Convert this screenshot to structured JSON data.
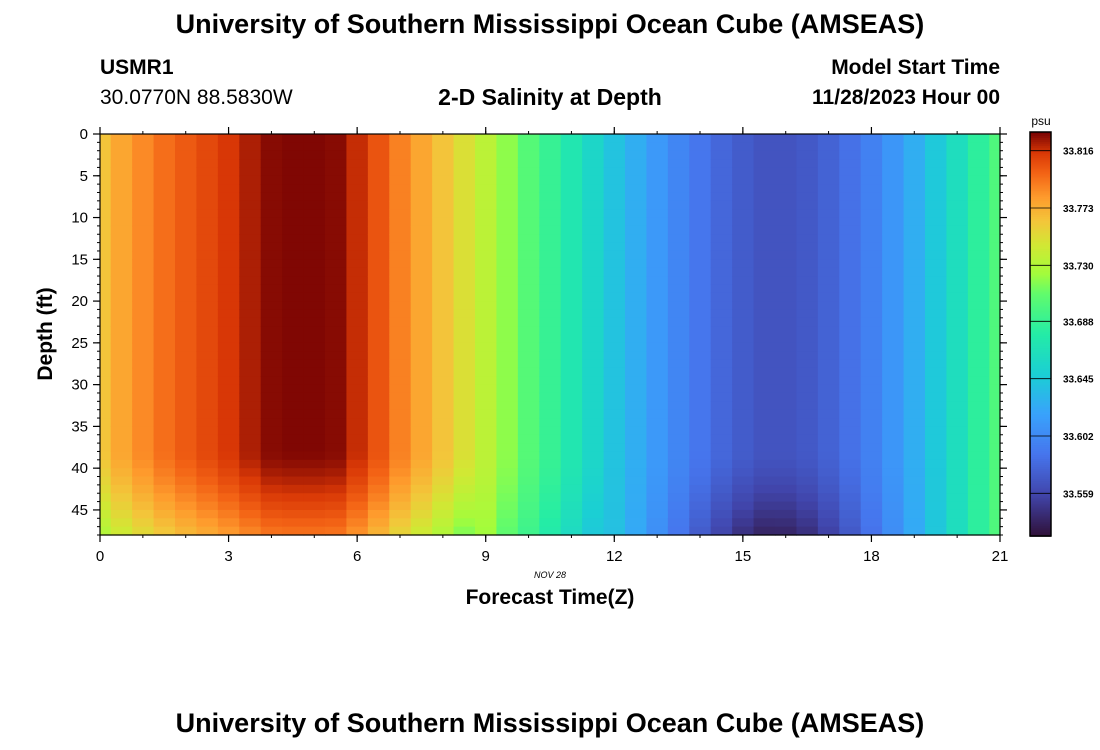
{
  "header": {
    "title": "University of Southern Mississippi Ocean Cube (AMSEAS)",
    "station": "USMR1",
    "coords": "30.0770N  88.5830W",
    "subtitle": "2-D Salinity at Depth",
    "model_start_label": "Model Start Time",
    "model_start_value": "11/28/2023 Hour 00",
    "bottom_title": "University of Southern Mississippi Ocean Cube (AMSEAS)"
  },
  "chart_data": {
    "type": "heatmap",
    "title": "2-D Salinity at Depth",
    "xlabel": "Forecast Time(Z)",
    "ylabel": "Depth (ft)",
    "date_label": "NOV 28",
    "xlim": [
      0,
      21
    ],
    "ylim": [
      0,
      48
    ],
    "x_ticks": [
      "0",
      "3",
      "6",
      "9",
      "12",
      "15",
      "18",
      "21"
    ],
    "y_ticks": [
      "0",
      "5",
      "10",
      "15",
      "20",
      "25",
      "30",
      "35",
      "40",
      "45"
    ],
    "colorbar": {
      "unit": "psu",
      "ticks": [
        "33.816",
        "33.773",
        "33.730",
        "33.688",
        "33.645",
        "33.602",
        "33.559"
      ],
      "min": 33.527,
      "max": 33.83
    },
    "time_steps": [
      0,
      0.5,
      1,
      1.5,
      2,
      2.5,
      3,
      3.5,
      4,
      4.5,
      5,
      5.5,
      6,
      6.5,
      7,
      7.5,
      8,
      8.5,
      9,
      9.5,
      10,
      10.5,
      11,
      11.5,
      12,
      12.5,
      13,
      13.5,
      14,
      14.5,
      15,
      15.5,
      16,
      16.5,
      17,
      17.5,
      18,
      18.5,
      19,
      19.5,
      20,
      20.5,
      21
    ],
    "surface_salinity_psu": [
      33.764,
      33.777,
      33.787,
      33.796,
      33.803,
      33.809,
      33.815,
      33.822,
      33.828,
      33.829,
      33.829,
      33.828,
      33.818,
      33.805,
      33.79,
      33.777,
      33.764,
      33.75,
      33.735,
      33.719,
      33.703,
      33.688,
      33.672,
      33.656,
      33.64,
      33.626,
      33.612,
      33.599,
      33.588,
      33.579,
      33.572,
      33.567,
      33.567,
      33.57,
      33.576,
      33.585,
      33.596,
      33.61,
      33.626,
      33.644,
      33.663,
      33.683,
      33.7
    ],
    "bottom_layer_anomaly": "fresher bottom water (~33.53 psu) near hours 15-16 at 45-48 ft"
  }
}
